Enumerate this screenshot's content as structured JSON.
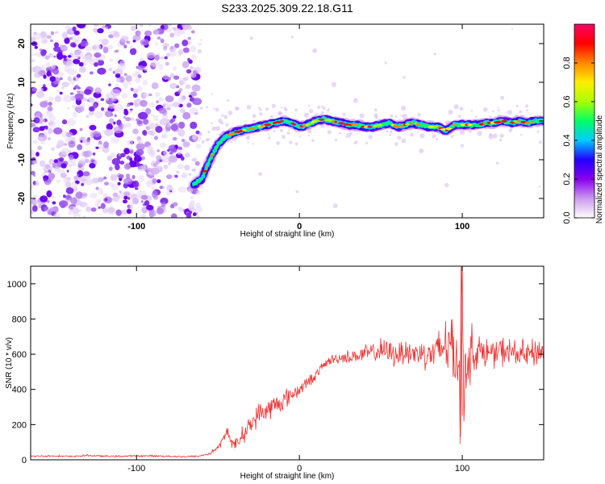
{
  "chart_data": [
    {
      "type": "heatmap",
      "title": "S233.2025.309.22.18.G11",
      "xlabel": "Height of straight line (km)",
      "ylabel": "Frequency (Hz)",
      "xlim": [
        -165,
        150
      ],
      "ylim": [
        -25,
        25
      ],
      "x_ticks": [
        "-100",
        "0",
        "100"
      ],
      "y_ticks": [
        "-20",
        "-10",
        "0",
        "10",
        "20"
      ],
      "colorbar": {
        "label": "Normalized spectral amplitude",
        "range": [
          0,
          1
        ],
        "ticks": [
          "0.0",
          "0.2",
          "0.4",
          "0.6",
          "0.8"
        ],
        "colors": [
          "#ffffff",
          "#cc99ee",
          "#8800ee",
          "#2200ff",
          "#00ccff",
          "#00ff66",
          "#aaff00",
          "#ffee00",
          "#ff8800",
          "#ff0000",
          "#ff0066"
        ]
      },
      "noise_region_x": [
        -165,
        -62
      ],
      "ridge": {
        "x": [
          -65,
          -60,
          -55,
          -50,
          -45,
          -40,
          -35,
          -30,
          -25,
          -20,
          -15,
          -10,
          -5,
          0,
          5,
          10,
          15,
          20,
          25,
          30,
          35,
          40,
          45,
          50,
          55,
          60,
          65,
          70,
          75,
          80,
          85,
          90,
          95,
          100,
          105,
          110,
          115,
          120,
          125,
          130,
          135,
          140,
          145,
          150
        ],
        "freq": [
          -16.5,
          -15,
          -10,
          -6,
          -4,
          -3,
          -2.5,
          -2,
          -1.5,
          -1,
          -0.5,
          0,
          -0.5,
          -1.5,
          -1,
          0,
          0.5,
          0,
          -0.5,
          -1,
          -1,
          -1.5,
          -1.5,
          -1,
          -0.5,
          -1.5,
          -1,
          -0.5,
          -1,
          -1.5,
          -1.5,
          -2.5,
          -1,
          -1,
          -1,
          -1,
          -0.5,
          -0.5,
          0,
          -0.5,
          0,
          -0.5,
          0,
          0
        ]
      }
    },
    {
      "type": "line",
      "xlabel": "Height of straight line (km)",
      "ylabel": "SNR (10 * v/v)",
      "xlim": [
        -165,
        150
      ],
      "ylim": [
        0,
        1100
      ],
      "x_ticks": [
        "-100",
        "0",
        "100"
      ],
      "y_ticks": [
        "0",
        "200",
        "400",
        "600",
        "800",
        "1000"
      ],
      "color": "#ee3333",
      "series": [
        {
          "name": "SNR",
          "x": [
            -165,
            -150,
            -140,
            -130,
            -120,
            -110,
            -100,
            -90,
            -80,
            -70,
            -62,
            -55,
            -50,
            -46,
            -44,
            -42,
            -40,
            -35,
            -30,
            -25,
            -20,
            -15,
            -10,
            -5,
            0,
            5,
            10,
            15,
            20,
            25,
            30,
            35,
            40,
            45,
            50,
            55,
            60,
            65,
            70,
            75,
            80,
            85,
            88,
            90,
            92,
            94,
            96,
            98,
            99,
            100,
            101,
            102,
            104,
            106,
            108,
            110,
            115,
            120,
            125,
            130,
            135,
            140,
            145,
            150
          ],
          "y": [
            20,
            22,
            18,
            25,
            20,
            20,
            22,
            22,
            20,
            18,
            20,
            35,
            70,
            125,
            170,
            110,
            75,
            140,
            200,
            260,
            280,
            310,
            335,
            370,
            400,
            440,
            480,
            540,
            570,
            580,
            585,
            590,
            600,
            610,
            620,
            610,
            600,
            620,
            600,
            610,
            600,
            610,
            640,
            700,
            620,
            680,
            560,
            640,
            120,
            1100,
            300,
            650,
            500,
            660,
            600,
            620,
            610,
            600,
            620,
            610,
            600,
            590,
            610,
            620
          ],
          "noise_amplitude": [
            6,
            6,
            6,
            6,
            6,
            6,
            6,
            6,
            6,
            6,
            6,
            10,
            20,
            30,
            40,
            40,
            40,
            60,
            70,
            75,
            80,
            80,
            70,
            60,
            50,
            40,
            35,
            30,
            35,
            40,
            45,
            50,
            60,
            70,
            80,
            85,
            90,
            95,
            100,
            100,
            110,
            150,
            200,
            250,
            250,
            250,
            250,
            250,
            250,
            250,
            250,
            250,
            200,
            160,
            130,
            110,
            100,
            100,
            100,
            100,
            100,
            100,
            100,
            100
          ]
        }
      ]
    }
  ]
}
